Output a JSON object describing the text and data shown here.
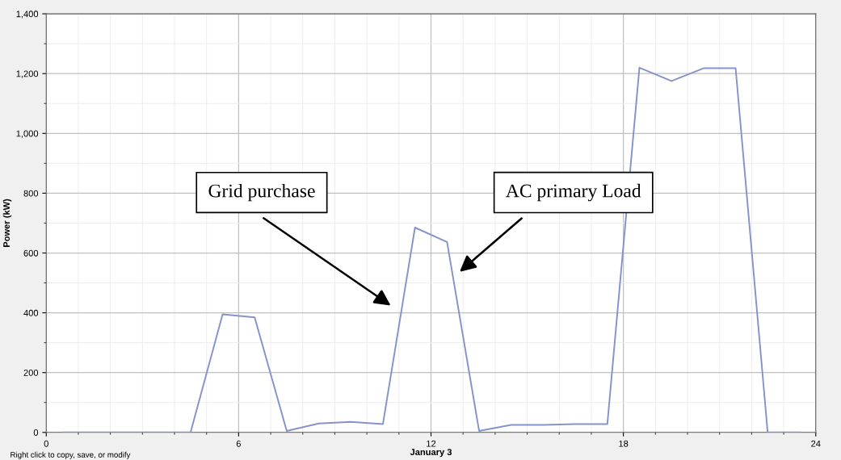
{
  "chart_data": {
    "type": "line",
    "xlabel": "January 3",
    "ylabel": "Power (kW)",
    "x": [
      0.5,
      1.5,
      2.5,
      3.5,
      4.5,
      5.5,
      6.5,
      7.5,
      8.5,
      9.5,
      10.5,
      11.5,
      12.5,
      13.5,
      14.5,
      15.5,
      16.5,
      17.5,
      18.5,
      19.5,
      20.5,
      21.5,
      22.5,
      23.5
    ],
    "series": [
      {
        "color": "#8593c9",
        "values": [
          0,
          0,
          0,
          0,
          0,
          395,
          385,
          5,
          30,
          35,
          28,
          685,
          637,
          5,
          25,
          25,
          28,
          28,
          1220,
          1175,
          1218,
          1218,
          0,
          0
        ]
      }
    ],
    "xlim": [
      0,
      24
    ],
    "xticks": [
      0,
      6,
      12,
      18,
      24
    ],
    "ylim": [
      0,
      1400
    ],
    "yticks": [
      0,
      {
        "value": 200,
        "label": "200"
      },
      {
        "value": 400,
        "label": "400"
      },
      {
        "value": 600,
        "label": "600"
      },
      {
        "value": 800,
        "label": "800"
      },
      {
        "value": 1000,
        "label": "1,000"
      },
      {
        "value": 1200,
        "label": "1,200"
      },
      {
        "value": 1400,
        "label": "1,400"
      }
    ],
    "grid": true,
    "marker": "none",
    "line_style": "solid",
    "annotations": [
      "Grid purchase",
      "AC primary Load",
      "Right click to copy, save, or modify"
    ]
  }
}
